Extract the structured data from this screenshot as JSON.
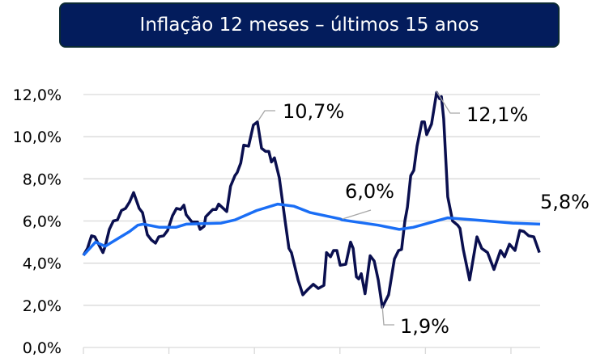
{
  "chart_data": {
    "type": "line",
    "title": "Inflação 12 meses – últimos 15 anos",
    "xlabel": "",
    "ylabel": "",
    "ylim": [
      0,
      12
    ],
    "xlim": [
      0,
      180
    ],
    "yticks": [
      "0,0%",
      "2,0%",
      "4,0%",
      "6,0%",
      "8,0%",
      "10,0%",
      "12,0%"
    ],
    "ytick_values": [
      0,
      2,
      4,
      6,
      8,
      10,
      12
    ],
    "xtick_values": [
      0,
      33.7,
      67.4,
      101.1,
      134.8,
      168.5
    ],
    "grid": "horizontal",
    "colors": {
      "series1": "#0a0f4f",
      "series2": "#1a6ef5",
      "grid": "#d9d9d9",
      "leader": "#a6a6a6",
      "title_bg": "#031c5c"
    },
    "series": [
      {
        "x": [
          0,
          1.6,
          3.2,
          4.5,
          6.1,
          7.7,
          8.6,
          10.2,
          11.8,
          13.4,
          15,
          16.6,
          18.2,
          19.8,
          22,
          23.3,
          25.2,
          26.8,
          28.4,
          29.7,
          31.6,
          33.2,
          35.1,
          36.7,
          38.3,
          39.6,
          40.5,
          42.8,
          45,
          46,
          47.6,
          48.2,
          51,
          52.3,
          53.3,
          56.5,
          58,
          59.7,
          60.6,
          62,
          63.2,
          65.1,
          67,
          68.6,
          70.2,
          71.8,
          73.1,
          74.1,
          75.3,
          77.2,
          79.5,
          81,
          82,
          84.6,
          86.5,
          88.4,
          90.6,
          92.6,
          94.8,
          95.8,
          97.4,
          98.6,
          99.9,
          101.2,
          103.4,
          105.3,
          106.3,
          107.6,
          108.5,
          109.5,
          111,
          113,
          114.6,
          116.2,
          117.8,
          120.3,
          122.6,
          124.2,
          125.4,
          126.7,
          127.7,
          129,
          130.2,
          131.5,
          133.4,
          134.4,
          135.3,
          137.2,
          139.2,
          140.4,
          141.1,
          142,
          143.6,
          145.5,
          147.5,
          148.4,
          149.7,
          152.2,
          155.1,
          157,
          159.3,
          161.8,
          164.4,
          166,
          167.9,
          170.1,
          172,
          173.6,
          175.5,
          177.5,
          179.7
        ],
        "values": [
          4.37,
          4.7,
          5.3,
          5.25,
          4.87,
          4.5,
          4.8,
          5.6,
          6.0,
          6.05,
          6.5,
          6.6,
          6.9,
          7.35,
          6.6,
          6.4,
          5.35,
          5.1,
          4.95,
          5.25,
          5.3,
          5.55,
          6.25,
          6.6,
          6.55,
          6.75,
          6.3,
          5.95,
          5.95,
          5.6,
          5.75,
          6.2,
          6.55,
          6.55,
          6.8,
          6.45,
          7.65,
          8.15,
          8.3,
          8.75,
          9.6,
          9.55,
          10.55,
          10.7,
          9.45,
          9.3,
          9.3,
          8.8,
          9.0,
          8.05,
          6.0,
          4.7,
          4.5,
          3.2,
          2.5,
          2.75,
          3.0,
          2.8,
          2.95,
          4.5,
          4.3,
          4.6,
          4.6,
          3.9,
          3.95,
          5.0,
          4.7,
          3.35,
          3.25,
          3.5,
          2.55,
          4.35,
          4.1,
          3.2,
          1.9,
          2.5,
          4.2,
          4.6,
          4.65,
          6.0,
          6.65,
          8.15,
          8.4,
          9.55,
          10.7,
          10.7,
          10.1,
          10.6,
          12.1,
          11.8,
          11.9,
          10.85,
          7.15,
          6.0,
          5.8,
          5.65,
          4.65,
          3.2,
          5.25,
          4.7,
          4.5,
          3.7,
          4.6,
          4.3,
          4.9,
          4.6,
          5.55,
          5.5,
          5.3,
          5.25,
          4.5
        ]
      },
      {
        "x": [
          0,
          4.8,
          8.6,
          18.2,
          21.4,
          23.6,
          30,
          36.4,
          40.5,
          54.3,
          59.7,
          68.3,
          76.6,
          83,
          89.4,
          101.2,
          102,
          116.2,
          124.5,
          130,
          143.6,
          154.5,
          169.2,
          180
        ],
        "values": [
          4.37,
          5.0,
          4.8,
          5.5,
          5.8,
          5.85,
          5.7,
          5.7,
          5.85,
          5.9,
          6.05,
          6.5,
          6.8,
          6.7,
          6.4,
          6.1,
          6.05,
          5.8,
          5.6,
          5.7,
          6.15,
          6.05,
          5.9,
          5.85
        ]
      }
    ],
    "annotations": [
      {
        "text": "10,7%",
        "series": 0,
        "x": 68.6,
        "y": 10.7
      },
      {
        "text": "12,1%",
        "series": 0,
        "x": 139.2,
        "y": 12.1
      },
      {
        "text": "1,9%",
        "series": 0,
        "x": 117.8,
        "y": 1.9
      },
      {
        "text": "6,0%",
        "series": 1,
        "x": 102,
        "y": 6.0
      },
      {
        "text": "5,8%",
        "series": 1,
        "x": 180,
        "y": 5.85
      }
    ]
  }
}
